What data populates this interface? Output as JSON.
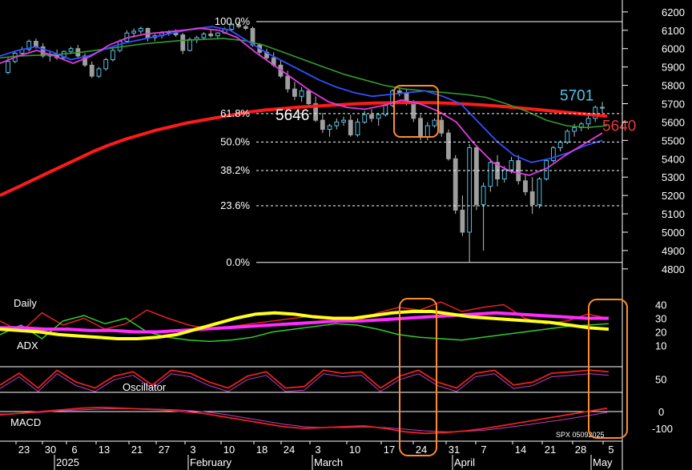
{
  "chart_data": {
    "type": "candlestick",
    "symbol_stamp": "SPX 05092025",
    "price_axis": {
      "ticks": [
        6200,
        6100,
        6000,
        5900,
        5800,
        5700,
        5600,
        5500,
        5400,
        5300,
        5200,
        5100,
        5000,
        4900,
        4800
      ],
      "ylim": [
        4760,
        6230
      ]
    },
    "fib_levels": [
      {
        "label": "100.0%",
        "price": 6147
      },
      {
        "label": "61.8%",
        "price": 5646
      },
      {
        "label": "50.0%",
        "price": 5491
      },
      {
        "label": "38.2%",
        "price": 5336
      },
      {
        "label": "23.6%",
        "price": 5144
      },
      {
        "label": "0.0%",
        "price": 4835
      }
    ],
    "annotations": [
      {
        "text": "5646",
        "price": 5646,
        "color": "#ffffff"
      },
      {
        "text": "5701",
        "price": 5701,
        "color": "#4fc3e8"
      },
      {
        "text": "5640",
        "price": 5640,
        "color": "#e43a3a"
      }
    ],
    "candles": [
      [
        5870,
        5950,
        5860,
        5930
      ],
      [
        5930,
        5990,
        5920,
        5975
      ],
      [
        5975,
        6010,
        5960,
        5995
      ],
      [
        5995,
        6050,
        5985,
        6040
      ],
      [
        6040,
        6055,
        6000,
        6010
      ],
      [
        6010,
        6030,
        5950,
        5960
      ],
      [
        5960,
        5990,
        5930,
        5970
      ],
      [
        5970,
        5995,
        5940,
        5950
      ],
      [
        5950,
        5990,
        5940,
        5985
      ],
      [
        5985,
        6010,
        5970,
        6000
      ],
      [
        6000,
        6020,
        5950,
        5960
      ],
      [
        5960,
        5975,
        5900,
        5910
      ],
      [
        5910,
        5930,
        5840,
        5850
      ],
      [
        5850,
        5900,
        5840,
        5890
      ],
      [
        5890,
        5950,
        5880,
        5940
      ],
      [
        5940,
        6000,
        5930,
        5990
      ],
      [
        5990,
        6050,
        5980,
        6040
      ],
      [
        6040,
        6100,
        6030,
        6085
      ],
      [
        6085,
        6110,
        6060,
        6095
      ],
      [
        6095,
        6120,
        6080,
        6110
      ],
      [
        6110,
        6115,
        6040,
        6060
      ],
      [
        6060,
        6080,
        6040,
        6070
      ],
      [
        6070,
        6095,
        6055,
        6085
      ],
      [
        6085,
        6100,
        6070,
        6090
      ],
      [
        6090,
        6105,
        6065,
        6075
      ],
      [
        6075,
        6085,
        5970,
        5990
      ],
      [
        5990,
        6060,
        5985,
        6050
      ],
      [
        6050,
        6070,
        6030,
        6060
      ],
      [
        6060,
        6090,
        6050,
        6080
      ],
      [
        6080,
        6100,
        6060,
        6070
      ],
      [
        6070,
        6090,
        6050,
        6085
      ],
      [
        6085,
        6115,
        6080,
        6105
      ],
      [
        6105,
        6140,
        6090,
        6130
      ],
      [
        6130,
        6147,
        6110,
        6120
      ],
      [
        6120,
        6130,
        6100,
        6110
      ],
      [
        6110,
        6120,
        6010,
        6020
      ],
      [
        6020,
        6030,
        5970,
        5980
      ],
      [
        5980,
        6000,
        5940,
        5950
      ],
      [
        5950,
        5980,
        5900,
        5910
      ],
      [
        5910,
        5940,
        5840,
        5850
      ],
      [
        5850,
        5880,
        5760,
        5780
      ],
      [
        5780,
        5820,
        5720,
        5740
      ],
      [
        5740,
        5790,
        5710,
        5770
      ],
      [
        5770,
        5780,
        5690,
        5700
      ],
      [
        5700,
        5740,
        5600,
        5610
      ],
      [
        5610,
        5650,
        5540,
        5560
      ],
      [
        5560,
        5590,
        5520,
        5580
      ],
      [
        5580,
        5620,
        5560,
        5600
      ],
      [
        5600,
        5630,
        5580,
        5610
      ],
      [
        5610,
        5640,
        5520,
        5530
      ],
      [
        5530,
        5620,
        5520,
        5600
      ],
      [
        5600,
        5660,
        5590,
        5640
      ],
      [
        5640,
        5670,
        5600,
        5620
      ],
      [
        5620,
        5650,
        5580,
        5640
      ],
      [
        5640,
        5700,
        5630,
        5690
      ],
      [
        5690,
        5780,
        5680,
        5770
      ],
      [
        5770,
        5790,
        5740,
        5760
      ],
      [
        5760,
        5780,
        5690,
        5710
      ],
      [
        5710,
        5720,
        5600,
        5620
      ],
      [
        5620,
        5640,
        5500,
        5520
      ],
      [
        5520,
        5600,
        5500,
        5580
      ],
      [
        5580,
        5620,
        5570,
        5610
      ],
      [
        5610,
        5630,
        5520,
        5540
      ],
      [
        5540,
        5560,
        5390,
        5400
      ],
      [
        5400,
        5420,
        5100,
        5120
      ],
      [
        5120,
        5200,
        4980,
        5000
      ],
      [
        5000,
        5480,
        4835,
        5460
      ],
      [
        5460,
        5470,
        5120,
        5150
      ],
      [
        5150,
        5270,
        4900,
        5250
      ],
      [
        5250,
        5400,
        5220,
        5380
      ],
      [
        5380,
        5420,
        5250,
        5290
      ],
      [
        5290,
        5360,
        5270,
        5340
      ],
      [
        5340,
        5410,
        5320,
        5390
      ],
      [
        5390,
        5420,
        5260,
        5280
      ],
      [
        5280,
        5310,
        5200,
        5220
      ],
      [
        5220,
        5300,
        5100,
        5150
      ],
      [
        5150,
        5300,
        5130,
        5290
      ],
      [
        5290,
        5400,
        5280,
        5390
      ],
      [
        5390,
        5470,
        5380,
        5460
      ],
      [
        5460,
        5500,
        5440,
        5490
      ],
      [
        5490,
        5560,
        5480,
        5550
      ],
      [
        5550,
        5590,
        5520,
        5570
      ],
      [
        5570,
        5600,
        5550,
        5590
      ],
      [
        5590,
        5640,
        5560,
        5620
      ],
      [
        5620,
        5690,
        5600,
        5680
      ],
      [
        5680,
        5710,
        5650,
        5680
      ]
    ],
    "sma200": [
      5200,
      5240,
      5280,
      5320,
      5360,
      5400,
      5440,
      5475,
      5505,
      5530,
      5555,
      5575,
      5595,
      5610,
      5625,
      5640,
      5655,
      5665,
      5672,
      5680,
      5685,
      5690,
      5695,
      5700,
      5703,
      5705,
      5706,
      5706,
      5705,
      5702,
      5698,
      5693,
      5687,
      5680,
      5672,
      5664,
      5656,
      5648,
      5640,
      5632
    ],
    "ema_green": [
      5950,
      5960,
      5965,
      5970,
      5980,
      5995,
      6010,
      6025,
      6035,
      6045,
      6050,
      6055,
      6045,
      6020,
      5980,
      5940,
      5900,
      5860,
      5830,
      5800,
      5780,
      5770,
      5760,
      5750,
      5735,
      5700,
      5660,
      5610,
      5580,
      5570,
      5580
    ],
    "ema_blue": [
      5960,
      5990,
      6010,
      5980,
      5940,
      5960,
      6000,
      6030,
      6050,
      6070,
      6090,
      6110,
      6120,
      6100,
      6040,
      5980,
      5930,
      5880,
      5830,
      5790,
      5760,
      5740,
      5750,
      5760,
      5770,
      5740,
      5700,
      5600,
      5500,
      5420,
      5380,
      5400,
      5430,
      5470,
      5500
    ],
    "ema_magenta": [
      5920,
      5960,
      5990,
      5960,
      5920,
      5960,
      6020,
      6060,
      6080,
      6090,
      6100,
      6110,
      6100,
      6060,
      5980,
      5910,
      5840,
      5770,
      5710,
      5680,
      5670,
      5690,
      5720,
      5700,
      5660,
      5600,
      5480,
      5380,
      5330,
      5310,
      5350,
      5420,
      5480,
      5540
    ],
    "dmi": {
      "adx": [
        22,
        21,
        20,
        18,
        17,
        16,
        15,
        15,
        16,
        18,
        22,
        26,
        30,
        33,
        34,
        33,
        31,
        30,
        30,
        32,
        34,
        35,
        35,
        33,
        31,
        30,
        29,
        28,
        27,
        25,
        23,
        22
      ],
      "adx_label": "ADX",
      "magenta": [
        23,
        23,
        22,
        22,
        21,
        21,
        20,
        20,
        21,
        22,
        23,
        24,
        25,
        26,
        27,
        28,
        28,
        29,
        30,
        31,
        32,
        33,
        34,
        33,
        32,
        31,
        30,
        30
      ],
      "red": [
        28,
        20,
        34,
        25,
        30,
        22,
        26,
        36,
        30,
        25,
        22,
        24,
        26,
        28,
        30,
        32,
        30,
        28,
        34,
        38,
        36,
        42,
        35,
        38,
        40,
        30,
        26,
        28,
        33,
        30
      ],
      "green": [
        18,
        25,
        15,
        28,
        32,
        26,
        30,
        20,
        16,
        14,
        13,
        14,
        16,
        20,
        22,
        24,
        26,
        25,
        22,
        18,
        16,
        15,
        14,
        16,
        18,
        20,
        22,
        24,
        25,
        26
      ],
      "ticks": [
        40,
        30,
        20,
        10
      ]
    },
    "oscillator": {
      "red": [
        30,
        70,
        20,
        80,
        40,
        20,
        60,
        75,
        30,
        80,
        70,
        40,
        20,
        60,
        75,
        20,
        25,
        80,
        70,
        75,
        20,
        60,
        80,
        40,
        20,
        70,
        80,
        30,
        40,
        70,
        75,
        80,
        75
      ],
      "ticks": [
        50
      ],
      "label": "Oscillator"
    },
    "macd": {
      "red": [
        -20,
        -10,
        0,
        10,
        20,
        25,
        20,
        15,
        10,
        0,
        -10,
        -30,
        -50,
        -70,
        -90,
        -100,
        -95,
        -90,
        -85,
        -100,
        -120,
        -130,
        -125,
        -115,
        -100,
        -80,
        -60,
        -40,
        -20,
        0,
        20
      ],
      "signal": [
        -15,
        -12,
        -5,
        5,
        10,
        15,
        18,
        17,
        14,
        8,
        0,
        -15,
        -35,
        -55,
        -75,
        -90,
        -95,
        -95,
        -92,
        -95,
        -105,
        -115,
        -120,
        -118,
        -110,
        -95,
        -80,
        -62,
        -45,
        -25,
        -5
      ],
      "ticks": [
        0,
        -100
      ],
      "label": "MACD"
    },
    "daily_label": "Daily",
    "date_ticks": [
      "23",
      "30",
      "6",
      "13",
      "21",
      "27",
      "3",
      "10",
      "18",
      "24",
      "3",
      "10",
      "17",
      "24",
      "31",
      "7",
      "14",
      "21",
      "28",
      "5"
    ],
    "months": [
      "2025",
      "February",
      "March",
      "April",
      "May"
    ]
  }
}
